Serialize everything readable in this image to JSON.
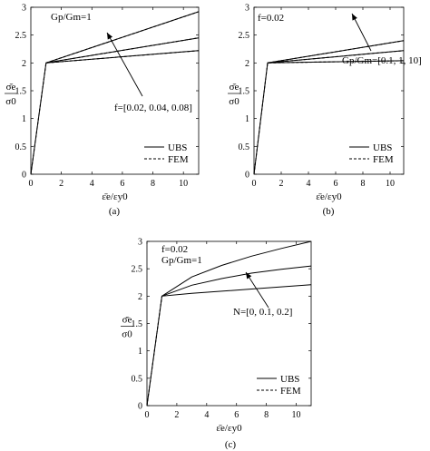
{
  "chart_data": [
    {
      "type": "line",
      "panel_label": "(a)",
      "xlim": [
        0,
        11
      ],
      "ylim": [
        0,
        3
      ],
      "x_ticks": [
        "0",
        "2",
        "4",
        "6",
        "8",
        "10"
      ],
      "y_ticks": [
        "0",
        "0.5",
        "1",
        "1.5",
        "2",
        "2.5",
        "3"
      ],
      "xlabel": "ε̄e/εy0",
      "ylabel_num": "σ̄e",
      "ylabel_den": "σ0",
      "annotations": [
        "Gp/Gm=1",
        "f=[0.02, 0.04, 0.08]"
      ],
      "legend": {
        "placement": "bottom-right",
        "entries": [
          "UBS",
          "FEM"
        ]
      },
      "series": [
        {
          "legend": "UBS",
          "style": "solid",
          "x": [
            0,
            1,
            11
          ],
          "y": [
            0,
            2.0,
            2.22
          ]
        },
        {
          "legend": "UBS",
          "style": "solid",
          "x": [
            1,
            11
          ],
          "y": [
            2.0,
            2.45
          ]
        },
        {
          "legend": "UBS",
          "style": "solid",
          "x": [
            1,
            11
          ],
          "y": [
            2.0,
            2.92
          ]
        },
        {
          "legend": "FEM",
          "style": "dashed",
          "x": [
            0,
            1,
            11
          ],
          "y": [
            0,
            2.0,
            2.22
          ]
        },
        {
          "legend": "FEM",
          "style": "dashed",
          "x": [
            1,
            11
          ],
          "y": [
            2.0,
            2.45
          ]
        },
        {
          "legend": "FEM",
          "style": "dashed",
          "x": [
            1,
            11
          ],
          "y": [
            2.0,
            2.92
          ]
        }
      ]
    },
    {
      "type": "line",
      "panel_label": "(b)",
      "xlim": [
        0,
        11
      ],
      "ylim": [
        0,
        3
      ],
      "x_ticks": [
        "0",
        "2",
        "4",
        "6",
        "8",
        "10"
      ],
      "y_ticks": [
        "0",
        "0.5",
        "1",
        "1.5",
        "2",
        "2.5",
        "3"
      ],
      "xlabel": "ε̄e/εy0",
      "ylabel_num": "σ̄e",
      "ylabel_den": "σ0",
      "annotations": [
        "f=0.02",
        "Gp/Gm=[0.1, 1, 10]"
      ],
      "legend": {
        "placement": "bottom-right",
        "entries": [
          "UBS",
          "FEM"
        ]
      },
      "series": [
        {
          "legend": "UBS",
          "style": "solid",
          "x": [
            0,
            1,
            11
          ],
          "y": [
            0,
            2.0,
            2.04
          ]
        },
        {
          "legend": "UBS",
          "style": "solid",
          "x": [
            1,
            11
          ],
          "y": [
            2.0,
            2.22
          ]
        },
        {
          "legend": "UBS",
          "style": "solid",
          "x": [
            1,
            11
          ],
          "y": [
            2.0,
            2.4
          ]
        },
        {
          "legend": "FEM",
          "style": "dashed",
          "x": [
            0,
            1,
            11
          ],
          "y": [
            0,
            2.0,
            2.04
          ]
        },
        {
          "legend": "FEM",
          "style": "dashed",
          "x": [
            1,
            11
          ],
          "y": [
            2.0,
            2.22
          ]
        },
        {
          "legend": "FEM",
          "style": "dashed",
          "x": [
            1,
            11
          ],
          "y": [
            2.0,
            2.4
          ]
        }
      ]
    },
    {
      "type": "line",
      "panel_label": "(c)",
      "xlim": [
        0,
        11
      ],
      "ylim": [
        0,
        3
      ],
      "x_ticks": [
        "0",
        "2",
        "4",
        "6",
        "8",
        "10"
      ],
      "y_ticks": [
        "0",
        "0.5",
        "1",
        "1.5",
        "2",
        "2.5",
        "3"
      ],
      "xlabel": "ε̄e/εy0",
      "ylabel_num": "σ̄e",
      "ylabel_den": "σ0",
      "annotations": [
        "f=0.02",
        "Gp/Gm=1",
        "N=[0, 0.1, 0.2]"
      ],
      "legend": {
        "placement": "bottom-right",
        "entries": [
          "UBS",
          "FEM"
        ]
      },
      "series": [
        {
          "legend": "UBS",
          "style": "solid",
          "x": [
            0,
            1,
            3,
            5,
            7,
            9,
            11
          ],
          "y": [
            0,
            2.0,
            2.05,
            2.09,
            2.13,
            2.17,
            2.21
          ]
        },
        {
          "legend": "UBS",
          "style": "solid",
          "x": [
            1,
            3,
            5,
            7,
            9,
            11
          ],
          "y": [
            2.0,
            2.2,
            2.32,
            2.42,
            2.49,
            2.55
          ]
        },
        {
          "legend": "UBS",
          "style": "solid",
          "x": [
            1,
            3,
            5,
            7,
            9,
            11
          ],
          "y": [
            2.0,
            2.35,
            2.56,
            2.73,
            2.87,
            3.0
          ]
        },
        {
          "legend": "FEM",
          "style": "dashed",
          "x": [
            0,
            1
          ],
          "y": [
            0,
            2.0
          ]
        }
      ]
    }
  ]
}
